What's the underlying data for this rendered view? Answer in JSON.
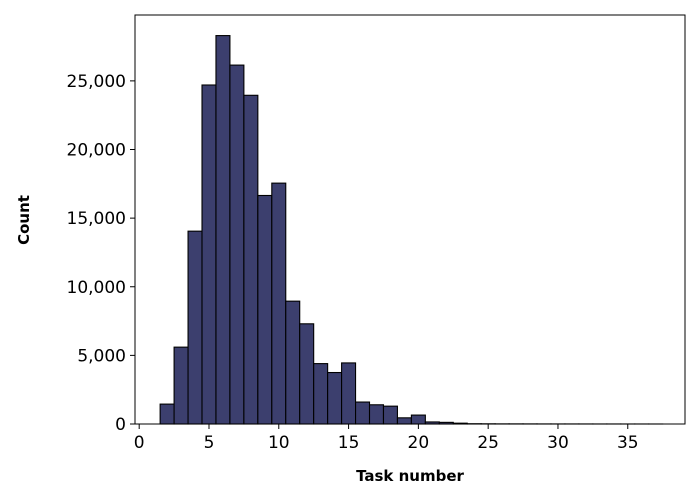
{
  "chart_data": {
    "type": "bar",
    "subtype": "histogram",
    "xlabel": "Task number",
    "ylabel": "Count",
    "xlim": [
      -0.3,
      39.1
    ],
    "ylim": [
      0,
      29800
    ],
    "x_ticks": [
      0,
      5,
      10,
      15,
      20,
      25,
      30,
      35
    ],
    "x_tick_labels": [
      "0",
      "5",
      "10",
      "15",
      "20",
      "25",
      "30",
      "35"
    ],
    "y_ticks": [
      0,
      5000,
      10000,
      15000,
      20000,
      25000
    ],
    "y_tick_labels": [
      "0",
      "5,000",
      "10,000",
      "15,000",
      "20,000",
      "25,000"
    ],
    "bar_color": "#3c3f6e",
    "edge_color": "#000000",
    "grid": false,
    "bins": [
      {
        "start": 1.5,
        "end": 2.5,
        "count": 1450
      },
      {
        "start": 2.5,
        "end": 3.5,
        "count": 5600
      },
      {
        "start": 3.5,
        "end": 4.5,
        "count": 14050
      },
      {
        "start": 4.5,
        "end": 5.5,
        "count": 24700
      },
      {
        "start": 5.5,
        "end": 6.5,
        "count": 28300
      },
      {
        "start": 6.5,
        "end": 7.5,
        "count": 26150
      },
      {
        "start": 7.5,
        "end": 8.5,
        "count": 23950
      },
      {
        "start": 8.5,
        "end": 9.5,
        "count": 16650
      },
      {
        "start": 9.5,
        "end": 10.5,
        "count": 17550
      },
      {
        "start": 10.5,
        "end": 11.5,
        "count": 8950
      },
      {
        "start": 11.5,
        "end": 12.5,
        "count": 7300
      },
      {
        "start": 12.5,
        "end": 13.5,
        "count": 4400
      },
      {
        "start": 13.5,
        "end": 14.5,
        "count": 3750
      },
      {
        "start": 14.5,
        "end": 15.5,
        "count": 4450
      },
      {
        "start": 15.5,
        "end": 16.5,
        "count": 1600
      },
      {
        "start": 16.5,
        "end": 17.5,
        "count": 1400
      },
      {
        "start": 17.5,
        "end": 18.5,
        "count": 1300
      },
      {
        "start": 18.5,
        "end": 19.5,
        "count": 450
      },
      {
        "start": 19.5,
        "end": 20.5,
        "count": 650
      },
      {
        "start": 20.5,
        "end": 21.5,
        "count": 150
      },
      {
        "start": 21.5,
        "end": 22.5,
        "count": 120
      },
      {
        "start": 22.5,
        "end": 23.5,
        "count": 60
      },
      {
        "start": 23.5,
        "end": 24.5,
        "count": 20
      },
      {
        "start": 24.5,
        "end": 25.5,
        "count": 15
      },
      {
        "start": 25.5,
        "end": 26.5,
        "count": 10
      },
      {
        "start": 26.5,
        "end": 27.5,
        "count": 10
      },
      {
        "start": 27.5,
        "end": 28.5,
        "count": 8
      },
      {
        "start": 28.5,
        "end": 29.5,
        "count": 6
      },
      {
        "start": 29.5,
        "end": 30.5,
        "count": 5
      },
      {
        "start": 30.5,
        "end": 31.5,
        "count": 5
      },
      {
        "start": 31.5,
        "end": 32.5,
        "count": 4
      },
      {
        "start": 32.5,
        "end": 33.5,
        "count": 3
      },
      {
        "start": 33.5,
        "end": 34.5,
        "count": 3
      },
      {
        "start": 34.5,
        "end": 35.5,
        "count": 2
      },
      {
        "start": 35.5,
        "end": 36.5,
        "count": 2
      },
      {
        "start": 36.5,
        "end": 37.5,
        "count": 1
      }
    ]
  }
}
